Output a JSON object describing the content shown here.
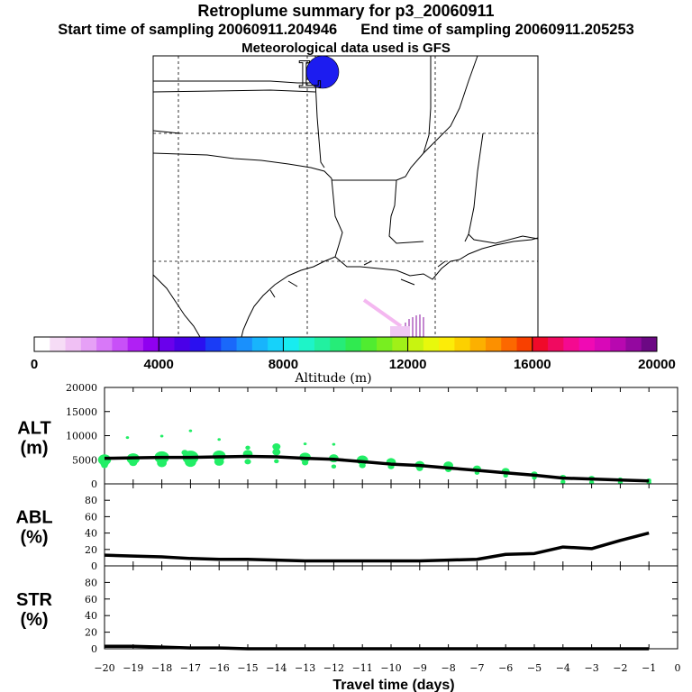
{
  "header": {
    "title": "Retroplume summary for p3_20060911",
    "start_label": "Start time of sampling 20060911.204946",
    "end_label": "End time of sampling 20060911.205253",
    "met_label": "Meteorological data used is GFS"
  },
  "colorbar": {
    "ticks": [
      "0",
      "4000",
      "8000",
      "12000",
      "16000",
      "20000"
    ],
    "label": "Altitude (m)",
    "colors": [
      "#ffffff",
      "#f6dcf6",
      "#f0c0f4",
      "#e6a0f6",
      "#d878f8",
      "#c850f8",
      "#b020f4",
      "#9000f0",
      "#6a00ec",
      "#4a00e8",
      "#2a10f0",
      "#1a3cf6",
      "#1a68fa",
      "#1a90fc",
      "#18b4fc",
      "#16d2fa",
      "#18ecf0",
      "#1ef4c8",
      "#22f0a0",
      "#26ec78",
      "#30ea50",
      "#50ec30",
      "#78ee20",
      "#a0f018",
      "#c8f410",
      "#e8f80c",
      "#fcec08",
      "#fcd000",
      "#fcb000",
      "#fc9000",
      "#fc6800",
      "#f84000",
      "#f00a2a",
      "#f00a60",
      "#f40a90",
      "#f00ab4",
      "#d808b8",
      "#b808b0",
      "#9408a0",
      "#6c0884"
    ]
  },
  "map": {
    "markers": [
      {
        "label": "L",
        "color": "#1c1cf0"
      }
    ]
  },
  "chart_data": [
    {
      "type": "line",
      "panel": "ALT",
      "ylabel": "ALT\n(m)",
      "ylabel_line1": "ALT",
      "ylabel_line2": "(m)",
      "ylim": [
        0,
        20000
      ],
      "yticks": [
        0,
        5000,
        10000,
        15000,
        20000
      ],
      "ytick_labels": [
        "0",
        "5000",
        "10000",
        "15000",
        "20000"
      ],
      "x": [
        -20,
        -19,
        -18,
        -17,
        -16,
        -15,
        -14,
        -13,
        -12,
        -11,
        -10,
        -9,
        -8,
        -7,
        -6,
        -5,
        -4,
        -3,
        -2,
        -1
      ],
      "values": [
        5300,
        5400,
        5500,
        5500,
        5600,
        5700,
        5600,
        5300,
        5100,
        4600,
        4100,
        3800,
        3300,
        2800,
        2300,
        1800,
        1200,
        1000,
        800,
        600
      ],
      "scatter": {
        "color": "#22ee66",
        "points": [
          {
            "x": -20,
            "y": 5000,
            "s": 8
          },
          {
            "x": -20,
            "y": 4200,
            "s": 5
          },
          {
            "x": -20,
            "y": 3800,
            "s": 4
          },
          {
            "x": -19,
            "y": 5200,
            "s": 8
          },
          {
            "x": -19,
            "y": 4400,
            "s": 5
          },
          {
            "x": -19.2,
            "y": 9600,
            "s": 2
          },
          {
            "x": -18,
            "y": 5500,
            "s": 9
          },
          {
            "x": -18,
            "y": 4300,
            "s": 6
          },
          {
            "x": -18,
            "y": 9900,
            "s": 2
          },
          {
            "x": -17,
            "y": 5500,
            "s": 10
          },
          {
            "x": -17,
            "y": 4500,
            "s": 7
          },
          {
            "x": -17,
            "y": 11000,
            "s": 2
          },
          {
            "x": -17.2,
            "y": 6500,
            "s": 4
          },
          {
            "x": -16,
            "y": 5800,
            "s": 8
          },
          {
            "x": -16,
            "y": 4600,
            "s": 6
          },
          {
            "x": -16,
            "y": 9200,
            "s": 2
          },
          {
            "x": -15,
            "y": 6200,
            "s": 6
          },
          {
            "x": -15,
            "y": 7500,
            "s": 3
          },
          {
            "x": -15,
            "y": 4600,
            "s": 4
          },
          {
            "x": -14,
            "y": 6600,
            "s": 5
          },
          {
            "x": -14,
            "y": 7700,
            "s": 5
          },
          {
            "x": -14,
            "y": 4700,
            "s": 3
          },
          {
            "x": -13,
            "y": 5500,
            "s": 7
          },
          {
            "x": -13,
            "y": 4400,
            "s": 4
          },
          {
            "x": -13,
            "y": 8300,
            "s": 2
          },
          {
            "x": -12,
            "y": 5300,
            "s": 6
          },
          {
            "x": -12,
            "y": 8200,
            "s": 2
          },
          {
            "x": -12,
            "y": 3600,
            "s": 3
          },
          {
            "x": -11,
            "y": 4900,
            "s": 7
          },
          {
            "x": -11,
            "y": 3800,
            "s": 4
          },
          {
            "x": -10,
            "y": 4500,
            "s": 6
          },
          {
            "x": -10,
            "y": 3600,
            "s": 4
          },
          {
            "x": -9,
            "y": 3900,
            "s": 6
          },
          {
            "x": -9,
            "y": 3200,
            "s": 4
          },
          {
            "x": -8,
            "y": 3800,
            "s": 6
          },
          {
            "x": -8,
            "y": 3000,
            "s": 4
          },
          {
            "x": -7,
            "y": 3100,
            "s": 5
          },
          {
            "x": -7,
            "y": 2300,
            "s": 3
          },
          {
            "x": -6,
            "y": 2600,
            "s": 5
          },
          {
            "x": -6,
            "y": 1700,
            "s": 3
          },
          {
            "x": -5,
            "y": 2000,
            "s": 4
          },
          {
            "x": -5,
            "y": 1300,
            "s": 3
          },
          {
            "x": -4,
            "y": 1300,
            "s": 4
          },
          {
            "x": -4,
            "y": 400,
            "s": 3
          },
          {
            "x": -3,
            "y": 1100,
            "s": 4
          },
          {
            "x": -3,
            "y": 300,
            "s": 3
          },
          {
            "x": -2,
            "y": 900,
            "s": 3
          },
          {
            "x": -2,
            "y": 300,
            "s": 3
          },
          {
            "x": -1,
            "y": 700,
            "s": 3
          },
          {
            "x": -1,
            "y": 300,
            "s": 3
          }
        ]
      }
    },
    {
      "type": "line",
      "panel": "ABL",
      "ylabel_line1": "ABL",
      "ylabel_line2": "(%)",
      "ylim": [
        0,
        100
      ],
      "yticks": [
        0,
        20,
        40,
        60,
        80
      ],
      "ytick_labels": [
        "0",
        "20",
        "40",
        "60",
        "80"
      ],
      "x": [
        -20,
        -19,
        -18,
        -17,
        -16,
        -15,
        -14,
        -13,
        -12,
        -11,
        -10,
        -9,
        -8,
        -7,
        -6,
        -5,
        -4,
        -3,
        -2,
        -1
      ],
      "values": [
        13,
        12,
        11,
        9,
        8,
        8,
        7,
        6,
        6,
        6,
        6,
        6,
        7,
        8,
        14,
        15,
        23,
        21,
        31,
        40
      ]
    },
    {
      "type": "line",
      "panel": "STR",
      "ylabel_line1": "STR",
      "ylabel_line2": "(%)",
      "ylim": [
        0,
        100
      ],
      "yticks": [
        0,
        20,
        40,
        60,
        80
      ],
      "ytick_labels": [
        "0",
        "20",
        "40",
        "60",
        "80"
      ],
      "x": [
        -20,
        -19,
        -18,
        -17,
        -16,
        -15,
        -14,
        -13,
        -12,
        -11,
        -10,
        -9,
        -8,
        -7,
        -6,
        -5,
        -4,
        -3,
        -2,
        -1
      ],
      "values": [
        3,
        3,
        2,
        1,
        1,
        0,
        0,
        0,
        0,
        0,
        0,
        0,
        0,
        0,
        0,
        0,
        0,
        0,
        0,
        0
      ]
    }
  ],
  "xaxis": {
    "ticks": [
      -20,
      -19,
      -18,
      -17,
      -16,
      -15,
      -14,
      -13,
      -12,
      -11,
      -10,
      -9,
      -8,
      -7,
      -6,
      -5,
      -4,
      -3,
      -2,
      -1,
      0
    ],
    "tick_labels": [
      "−20",
      "−19",
      "−18",
      "−17",
      "−16",
      "−15",
      "−14",
      "−13",
      "−12",
      "−11",
      "−10",
      "−9",
      "−8",
      "−7",
      "−6",
      "−5",
      "−4",
      "−3",
      "−2",
      "−1",
      "0"
    ],
    "label": "Travel time (days)",
    "xlim": [
      -20,
      0
    ]
  }
}
